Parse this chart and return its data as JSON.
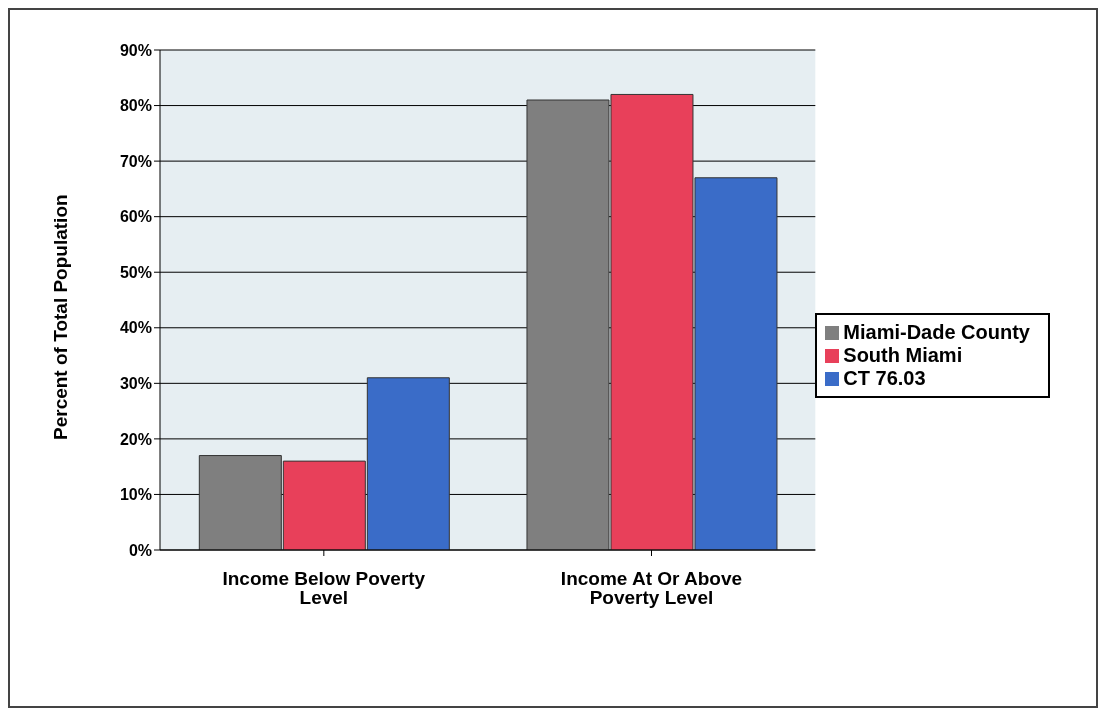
{
  "chart_data": {
    "type": "bar",
    "ylabel": "Percent of Total Population",
    "categories": [
      "Income Below Poverty Level",
      "Income At Or Above Poverty Level"
    ],
    "series": [
      {
        "name": "Miami-Dade County",
        "color": "#7f7f7f",
        "values": [
          17,
          81
        ]
      },
      {
        "name": "South Miami",
        "color": "#e8405a",
        "values": [
          16,
          82
        ]
      },
      {
        "name": "CT 76.03",
        "color": "#3a6cc8",
        "values": [
          31,
          67
        ]
      }
    ],
    "ylim": [
      0,
      90
    ],
    "yticks": [
      {
        "value": 0,
        "label": "0%"
      },
      {
        "value": 10,
        "label": "10%"
      },
      {
        "value": 20,
        "label": "20%"
      },
      {
        "value": 30,
        "label": "30%"
      },
      {
        "value": 40,
        "label": "40%"
      },
      {
        "value": 50,
        "label": "50%"
      },
      {
        "value": 60,
        "label": "60%"
      },
      {
        "value": 70,
        "label": "70%"
      },
      {
        "value": 80,
        "label": "80%"
      },
      {
        "value": 90,
        "label": "90%"
      }
    ],
    "grid": "y",
    "legend": "right"
  }
}
